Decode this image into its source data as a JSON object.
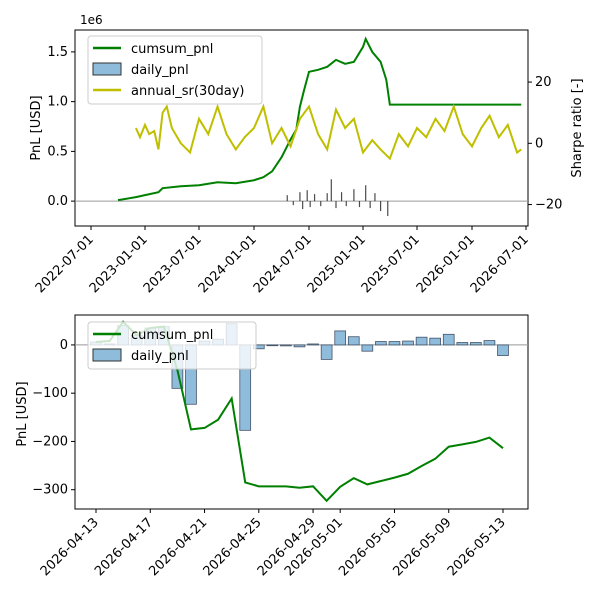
{
  "chart_data": [
    {
      "type": "line",
      "x_axis": {
        "tick_labels": [
          "2022-07-01",
          "2023-01-01",
          "2023-07-01",
          "2024-01-01",
          "2024-07-01",
          "2025-01-01",
          "2025-07-01",
          "2026-01-01",
          "2026-07-01"
        ]
      },
      "y_left": {
        "label": "PnL [USD]",
        "offset_text": "1e6",
        "ylim": [
          -0.25,
          1.72
        ],
        "ticks": [
          0.0,
          0.5,
          1.0,
          1.5
        ],
        "tick_labels": [
          "0.0",
          "0.5",
          "1.0",
          "1.5"
        ]
      },
      "y_right": {
        "label": "Sharpe ratio [-]",
        "ylim": [
          -27,
          37
        ],
        "ticks": [
          -20,
          0,
          20
        ],
        "tick_labels": [
          "−20",
          "0",
          "20"
        ]
      },
      "legend": {
        "placement": "top-left",
        "entries": [
          {
            "label": "cumsum_pnl",
            "color": "#008000",
            "kind": "line"
          },
          {
            "label": "daily_pnl",
            "color": "#8fbcdb",
            "kind": "patch"
          },
          {
            "label": "annual_sr(30day)",
            "color": "#bfbf00",
            "kind": "line"
          }
        ]
      },
      "series": [
        {
          "name": "cumsum_pnl",
          "axis": "left",
          "color": "#008000",
          "points": [
            [
              "2022-10-01",
              0.01
            ],
            [
              "2022-12-01",
              0.04
            ],
            [
              "2023-01-01",
              0.06
            ],
            [
              "2023-02-15",
              0.09
            ],
            [
              "2023-03-01",
              0.13
            ],
            [
              "2023-05-01",
              0.15
            ],
            [
              "2023-07-01",
              0.16
            ],
            [
              "2023-09-01",
              0.19
            ],
            [
              "2023-11-01",
              0.18
            ],
            [
              "2024-01-01",
              0.21
            ],
            [
              "2024-02-01",
              0.24
            ],
            [
              "2024-03-01",
              0.3
            ],
            [
              "2024-04-01",
              0.44
            ],
            [
              "2024-05-01",
              0.62
            ],
            [
              "2024-05-20",
              0.72
            ],
            [
              "2024-06-01",
              0.95
            ],
            [
              "2024-06-15",
              1.12
            ],
            [
              "2024-07-01",
              1.3
            ],
            [
              "2024-08-01",
              1.32
            ],
            [
              "2024-09-01",
              1.35
            ],
            [
              "2024-10-01",
              1.42
            ],
            [
              "2024-11-01",
              1.38
            ],
            [
              "2024-12-01",
              1.4
            ],
            [
              "2025-01-01",
              1.55
            ],
            [
              "2025-01-10",
              1.63
            ],
            [
              "2025-02-01",
              1.5
            ],
            [
              "2025-03-01",
              1.4
            ],
            [
              "2025-03-20",
              1.22
            ],
            [
              "2025-04-01",
              0.97
            ],
            [
              "2026-06-15",
              0.97
            ]
          ]
        },
        {
          "name": "annual_sr(30day)",
          "axis": "right",
          "color": "#bfbf00",
          "points": [
            [
              "2022-12-01",
              5
            ],
            [
              "2022-12-15",
              2
            ],
            [
              "2023-01-01",
              6
            ],
            [
              "2023-01-15",
              3
            ],
            [
              "2023-02-01",
              4
            ],
            [
              "2023-02-15",
              -2
            ],
            [
              "2023-03-01",
              10
            ],
            [
              "2023-03-15",
              12
            ],
            [
              "2023-04-01",
              5
            ],
            [
              "2023-05-01",
              0
            ],
            [
              "2023-06-01",
              -3
            ],
            [
              "2023-07-01",
              8
            ],
            [
              "2023-08-01",
              3
            ],
            [
              "2023-09-01",
              12
            ],
            [
              "2023-10-01",
              3
            ],
            [
              "2023-11-01",
              -2
            ],
            [
              "2023-12-01",
              2
            ],
            [
              "2024-01-01",
              5
            ],
            [
              "2024-02-01",
              12
            ],
            [
              "2024-03-01",
              0
            ],
            [
              "2024-04-01",
              5
            ],
            [
              "2024-05-01",
              -1
            ],
            [
              "2024-06-01",
              8
            ],
            [
              "2024-07-01",
              12
            ],
            [
              "2024-08-01",
              3
            ],
            [
              "2024-09-01",
              -2
            ],
            [
              "2024-10-01",
              11
            ],
            [
              "2024-11-01",
              5
            ],
            [
              "2024-12-01",
              8
            ],
            [
              "2025-01-01",
              -3
            ],
            [
              "2025-02-01",
              1
            ],
            [
              "2025-03-01",
              -2
            ],
            [
              "2025-04-01",
              -5
            ],
            [
              "2025-05-01",
              3
            ],
            [
              "2025-06-01",
              -1
            ],
            [
              "2025-07-01",
              5
            ],
            [
              "2025-08-01",
              2
            ],
            [
              "2025-09-01",
              8
            ],
            [
              "2025-10-01",
              4
            ],
            [
              "2025-11-01",
              12
            ],
            [
              "2025-12-01",
              3
            ],
            [
              "2026-01-01",
              -1
            ],
            [
              "2026-02-01",
              5
            ],
            [
              "2026-03-01",
              9
            ],
            [
              "2026-04-01",
              2
            ],
            [
              "2026-05-01",
              6
            ],
            [
              "2026-06-01",
              -3
            ],
            [
              "2026-06-15",
              -2
            ]
          ]
        },
        {
          "name": "daily_pnl",
          "axis": "left",
          "color": "#1f1f1f",
          "bars": [
            [
              "2024-04-20",
              0.06
            ],
            [
              "2024-05-10",
              -0.04
            ],
            [
              "2024-06-01",
              0.09
            ],
            [
              "2024-06-10",
              -0.08
            ],
            [
              "2024-06-25",
              0.11
            ],
            [
              "2024-07-05",
              -0.06
            ],
            [
              "2024-07-20",
              0.07
            ],
            [
              "2024-08-10",
              -0.05
            ],
            [
              "2024-09-01",
              0.08
            ],
            [
              "2024-09-15",
              0.22
            ],
            [
              "2024-10-01",
              -0.07
            ],
            [
              "2024-10-20",
              0.09
            ],
            [
              "2024-11-05",
              -0.05
            ],
            [
              "2024-12-01",
              0.12
            ],
            [
              "2024-12-20",
              -0.06
            ],
            [
              "2025-01-10",
              0.16
            ],
            [
              "2025-01-25",
              -0.07
            ],
            [
              "2025-02-10",
              0.08
            ],
            [
              "2025-03-01",
              -0.1
            ],
            [
              "2025-03-25",
              -0.15
            ]
          ]
        }
      ]
    },
    {
      "type": "bar",
      "x_axis": {
        "tick_labels": [
          "2026-04-13",
          "2026-04-17",
          "2026-04-21",
          "2026-04-25",
          "2026-04-29",
          "2026-05-01",
          "2026-05-05",
          "2026-05-09",
          "2026-05-13"
        ]
      },
      "y_left": {
        "label": "PnL [USD]",
        "ylim": [
          -340,
          62
        ],
        "ticks": [
          -300,
          -200,
          -100,
          0
        ],
        "tick_labels": [
          "−300",
          "−200",
          "−100",
          "0"
        ]
      },
      "legend": {
        "placement": "top-left",
        "entries": [
          {
            "label": "cumsum_pnl",
            "color": "#008000",
            "kind": "line"
          },
          {
            "label": "daily_pnl",
            "color": "#8fbcdb",
            "kind": "patch"
          }
        ]
      },
      "series": [
        {
          "name": "daily_pnl",
          "color": "#8fbcdb",
          "bars": [
            [
              "2026-04-13",
              6
            ],
            [
              "2026-04-14",
              2
            ],
            [
              "2026-04-15",
              40
            ],
            [
              "2026-04-16",
              20
            ],
            [
              "2026-04-17",
              35
            ],
            [
              "2026-04-18",
              38
            ],
            [
              "2026-04-19",
              -90
            ],
            [
              "2026-04-20",
              -123
            ],
            [
              "2026-04-21",
              8
            ],
            [
              "2026-04-22",
              12
            ],
            [
              "2026-04-23",
              44
            ],
            [
              "2026-04-24",
              -177
            ],
            [
              "2026-04-25",
              -8
            ],
            [
              "2026-04-26",
              -1
            ],
            [
              "2026-04-27",
              -2
            ],
            [
              "2026-04-28",
              -4
            ],
            [
              "2026-04-29",
              2
            ],
            [
              "2026-04-30",
              -30
            ],
            [
              "2026-05-01",
              29
            ],
            [
              "2026-05-02",
              17
            ],
            [
              "2026-05-03",
              -13
            ],
            [
              "2026-05-04",
              7
            ],
            [
              "2026-05-05",
              7
            ],
            [
              "2026-05-06",
              8
            ],
            [
              "2026-05-07",
              16
            ],
            [
              "2026-05-08",
              14
            ],
            [
              "2026-05-09",
              22
            ],
            [
              "2026-05-10",
              5
            ],
            [
              "2026-05-11",
              5
            ],
            [
              "2026-05-12",
              9
            ],
            [
              "2026-05-13",
              -22
            ]
          ]
        },
        {
          "name": "cumsum_pnl",
          "color": "#008000",
          "points": [
            [
              "2026-04-13",
              6
            ],
            [
              "2026-04-14",
              8
            ],
            [
              "2026-04-15",
              48
            ],
            [
              "2026-04-16",
              20
            ],
            [
              "2026-04-17",
              35
            ],
            [
              "2026-04-18",
              38
            ],
            [
              "2026-04-19",
              -52
            ],
            [
              "2026-04-20",
              -175
            ],
            [
              "2026-04-21",
              -172
            ],
            [
              "2026-04-22",
              -155
            ],
            [
              "2026-04-23",
              -111
            ],
            [
              "2026-04-24",
              -285
            ],
            [
              "2026-04-25",
              -293
            ],
            [
              "2026-04-26",
              -293
            ],
            [
              "2026-04-27",
              -293
            ],
            [
              "2026-04-28",
              -296
            ],
            [
              "2026-04-29",
              -293
            ],
            [
              "2026-04-30",
              -323
            ],
            [
              "2026-05-01",
              -294
            ],
            [
              "2026-05-02",
              -276
            ],
            [
              "2026-05-03",
              -289
            ],
            [
              "2026-05-04",
              -282
            ],
            [
              "2026-05-05",
              -275
            ],
            [
              "2026-05-06",
              -267
            ],
            [
              "2026-05-07",
              -251
            ],
            [
              "2026-05-08",
              -236
            ],
            [
              "2026-05-09",
              -211
            ],
            [
              "2026-05-10",
              -206
            ],
            [
              "2026-05-11",
              -201
            ],
            [
              "2026-05-12",
              -192
            ],
            [
              "2026-05-13",
              -214
            ]
          ]
        }
      ]
    }
  ]
}
